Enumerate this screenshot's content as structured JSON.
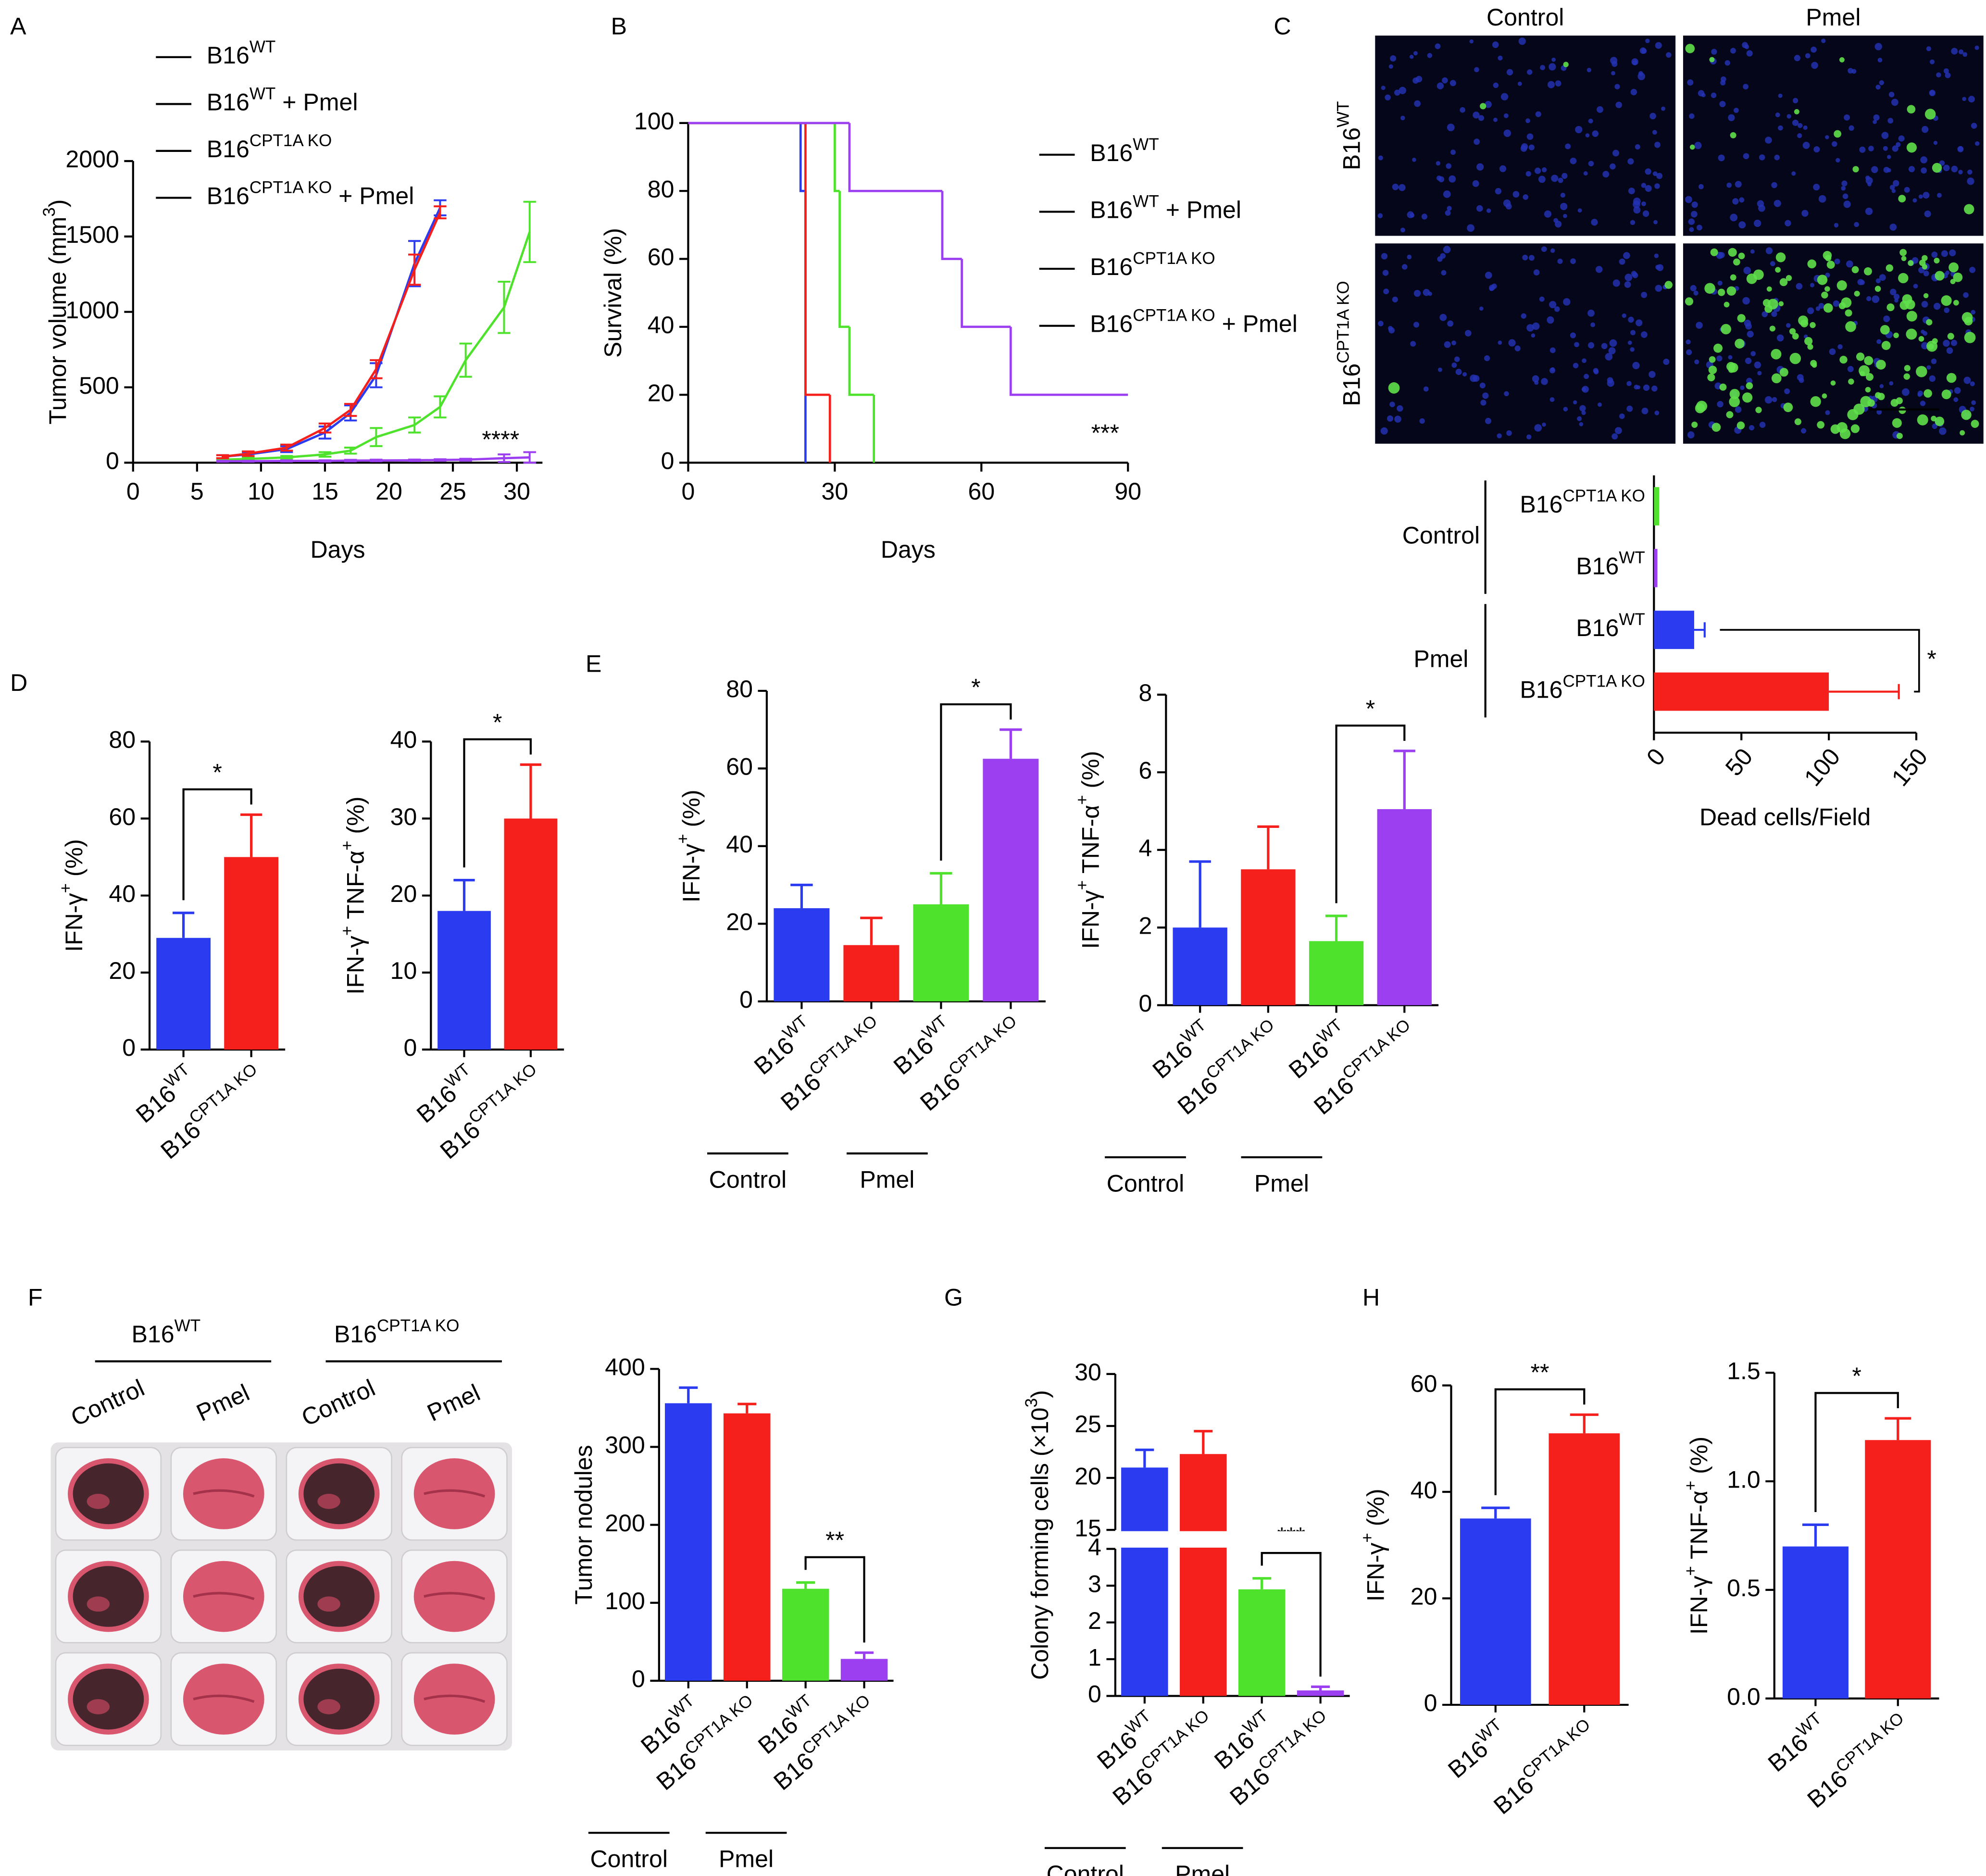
{
  "chart_data": [
    {
      "type": "line",
      "panel": "A",
      "xlabel": "Days",
      "ylabel": [
        "Tumor volume (mm",
        "3",
        ")"
      ],
      "xlim": [
        0,
        32
      ],
      "xticks": [
        0,
        5,
        10,
        15,
        20,
        25,
        30
      ],
      "ylim": [
        0,
        2000
      ],
      "yticks": [
        0,
        500,
        1000,
        1500,
        2000
      ],
      "annotation": "****",
      "series": [
        {
          "name": [
            "B16",
            "WT"
          ],
          "color": "#2b3bef",
          "x": [
            7,
            9,
            12,
            15,
            17,
            19,
            22,
            24
          ],
          "values": [
            40,
            55,
            90,
            200,
            330,
            580,
            1320,
            1690
          ],
          "errors": [
            10,
            15,
            20,
            40,
            50,
            80,
            150,
            50
          ]
        },
        {
          "name": [
            "B16",
            "WT",
            " + Pmel"
          ],
          "color": "#4ee22c",
          "x": [
            7,
            9,
            12,
            15,
            17,
            19,
            22,
            24,
            26,
            29,
            31
          ],
          "values": [
            20,
            25,
            35,
            55,
            80,
            170,
            250,
            370,
            680,
            1030,
            1530
          ],
          "errors": [
            5,
            8,
            10,
            15,
            20,
            60,
            50,
            70,
            110,
            170,
            200
          ]
        },
        {
          "name": [
            "B16",
            "CPT1A KO"
          ],
          "color": "#f5201c",
          "x": [
            7,
            9,
            12,
            15,
            17,
            19,
            22,
            24
          ],
          "values": [
            40,
            60,
            100,
            230,
            350,
            620,
            1280,
            1660
          ],
          "errors": [
            10,
            15,
            20,
            30,
            40,
            60,
            100,
            40
          ]
        },
        {
          "name": [
            "B16",
            "CPT1A KO",
            " + Pmel"
          ],
          "color": "#9b3ff0",
          "x": [
            7,
            9,
            12,
            15,
            17,
            19,
            22,
            24,
            26,
            29,
            31
          ],
          "values": [
            10,
            10,
            12,
            12,
            14,
            15,
            16,
            18,
            20,
            30,
            35
          ],
          "errors": [
            3,
            3,
            4,
            4,
            5,
            5,
            5,
            5,
            6,
            25,
            35
          ]
        }
      ]
    },
    {
      "type": "step",
      "panel": "B",
      "xlabel": "Days",
      "ylabel": "Survival (%)",
      "xlim": [
        0,
        90
      ],
      "xticks": [
        0,
        30,
        60,
        90
      ],
      "ylim": [
        0,
        100
      ],
      "yticks": [
        0,
        20,
        40,
        60,
        80,
        100
      ],
      "annotation": "***",
      "series": [
        {
          "name": [
            "B16",
            "WT"
          ],
          "color": "#2b3bef",
          "x": [
            0,
            23,
            24
          ],
          "values": [
            100,
            80,
            0
          ]
        },
        {
          "name": [
            "B16",
            "WT",
            " + Pmel"
          ],
          "color": "#4ee22c",
          "x": [
            0,
            30,
            31,
            33,
            38
          ],
          "values": [
            100,
            80,
            40,
            20,
            0
          ]
        },
        {
          "name": [
            "B16",
            "CPT1A KO"
          ],
          "color": "#f5201c",
          "x": [
            0,
            24,
            29
          ],
          "values": [
            100,
            20,
            0
          ]
        },
        {
          "name": [
            "B16",
            "CPT1A KO",
            " + Pmel"
          ],
          "color": "#9b3ff0",
          "x": [
            0,
            33,
            52,
            56,
            66,
            90
          ],
          "values": [
            100,
            80,
            60,
            40,
            20,
            20
          ]
        }
      ]
    },
    {
      "type": "image",
      "panel": "C",
      "columns": [
        "Control",
        "Pmel"
      ],
      "rows": [
        [
          "B16",
          "WT"
        ],
        [
          "B16",
          "CPT1A KO"
        ]
      ]
    },
    {
      "type": "hbar",
      "xlabel": "Dead cells/Field",
      "xlim": [
        0,
        150
      ],
      "xticks": [
        0,
        50,
        100,
        150
      ],
      "groups": [
        {
          "label": "Control",
          "bars": [
            {
              "category": [
                "B16",
                "CPT1A KO"
              ],
              "value": 3,
              "color": "#4ee22c"
            },
            {
              "category": [
                "B16",
                "WT"
              ],
              "value": 2,
              "color": "#9b3ff0"
            }
          ]
        },
        {
          "label": "Pmel",
          "bars": [
            {
              "category": [
                "B16",
                "WT"
              ],
              "value": 23,
              "error": 6,
              "color": "#2b3bef"
            },
            {
              "category": [
                "B16",
                "CPT1A KO"
              ],
              "value": 100,
              "error": 40,
              "color": "#f5201c",
              "significance": "*"
            }
          ]
        }
      ]
    },
    {
      "type": "bar",
      "panel": "D",
      "ylabel": [
        "IFN-γ",
        "+",
        " (%)"
      ],
      "ylim": [
        0,
        80
      ],
      "yticks": [
        0,
        20,
        40,
        60,
        80
      ],
      "bars": [
        {
          "category": [
            "B16",
            "WT"
          ],
          "value": 29,
          "error": 6.5,
          "color": "#2b3bef"
        },
        {
          "category": [
            "B16",
            "CPT1A KO"
          ],
          "value": 50,
          "error": 11,
          "color": "#f5201c",
          "significance": "*"
        }
      ]
    },
    {
      "type": "bar",
      "ylabel": [
        "IFN-γ",
        "+",
        " TNF-α",
        "+",
        " (%)"
      ],
      "ylim": [
        0,
        40
      ],
      "yticks": [
        0,
        10,
        20,
        30,
        40
      ],
      "bars": [
        {
          "category": [
            "B16",
            "WT"
          ],
          "value": 18,
          "error": 4,
          "color": "#2b3bef"
        },
        {
          "category": [
            "B16",
            "CPT1A KO"
          ],
          "value": 30,
          "error": 7,
          "color": "#f5201c",
          "significance": "*"
        }
      ]
    },
    {
      "type": "bar",
      "panel": "E",
      "ylabel": [
        "IFN-γ",
        "+",
        " (%)"
      ],
      "ylim": [
        0,
        80
      ],
      "yticks": [
        0,
        20,
        40,
        60,
        80
      ],
      "groups": [
        {
          "label": "Control",
          "bars": [
            {
              "category": [
                "B16",
                "WT"
              ],
              "value": 24,
              "error": 6,
              "color": "#2b3bef"
            },
            {
              "category": [
                "B16",
                "CPT1A KO"
              ],
              "value": 14.5,
              "error": 7,
              "color": "#f5201c"
            }
          ]
        },
        {
          "label": "Pmel",
          "bars": [
            {
              "category": [
                "B16",
                "WT"
              ],
              "value": 25,
              "error": 8,
              "color": "#4ee22c"
            },
            {
              "category": [
                "B16",
                "CPT1A KO"
              ],
              "value": 62.5,
              "error": 7.5,
              "color": "#9b3ff0",
              "significance": "*"
            }
          ]
        }
      ]
    },
    {
      "type": "bar",
      "ylabel": [
        "IFN-γ",
        "+",
        " TNF-α",
        "+",
        " (%)"
      ],
      "ylim": [
        0,
        8
      ],
      "yticks": [
        0,
        2,
        4,
        6,
        8
      ],
      "groups": [
        {
          "label": "Control",
          "bars": [
            {
              "category": [
                "B16",
                "WT"
              ],
              "value": 2,
              "error": 1.7,
              "color": "#2b3bef"
            },
            {
              "category": [
                "B16",
                "CPT1A KO"
              ],
              "value": 3.5,
              "error": 1.1,
              "color": "#f5201c"
            }
          ]
        },
        {
          "label": "Pmel",
          "bars": [
            {
              "category": [
                "B16",
                "WT"
              ],
              "value": 1.65,
              "error": 0.65,
              "color": "#4ee22c"
            },
            {
              "category": [
                "B16",
                "CPT1A KO"
              ],
              "value": 5.05,
              "error": 1.5,
              "color": "#9b3ff0",
              "significance": "*"
            }
          ]
        }
      ]
    },
    {
      "type": "photo",
      "panel": "F",
      "groups": [
        {
          "label": [
            "B16",
            "WT"
          ],
          "columns": [
            "Control",
            "Pmel"
          ]
        },
        {
          "label": [
            "B16",
            "CPT1A KO"
          ],
          "columns": [
            "Control",
            "Pmel"
          ]
        }
      ]
    },
    {
      "type": "bar",
      "ylabel": "Tumor nodules",
      "ylim": [
        0,
        400
      ],
      "yticks": [
        0,
        100,
        200,
        300,
        400
      ],
      "groups": [
        {
          "label": "Control",
          "bars": [
            {
              "category": [
                "B16",
                "WT"
              ],
              "value": 356,
              "error": 20,
              "color": "#2b3bef"
            },
            {
              "category": [
                "B16",
                "CPT1A KO"
              ],
              "value": 343,
              "error": 12,
              "color": "#f5201c"
            }
          ]
        },
        {
          "label": "Pmel",
          "bars": [
            {
              "category": [
                "B16",
                "WT"
              ],
              "value": 118,
              "error": 8,
              "color": "#4ee22c"
            },
            {
              "category": [
                "B16",
                "CPT1A KO"
              ],
              "value": 28,
              "error": 8,
              "color": "#9b3ff0",
              "significance": "**"
            }
          ]
        }
      ]
    },
    {
      "type": "bar",
      "panel": "G",
      "ylabel": [
        "Colony forming cells (×10",
        "3",
        ")"
      ],
      "ylim": [
        0,
        30
      ],
      "ybreak": [
        4,
        15
      ],
      "yticks": [
        0,
        1,
        2,
        3,
        4,
        15,
        20,
        25,
        30
      ],
      "groups": [
        {
          "label": "Control",
          "bars": [
            {
              "category": [
                "B16",
                "WT"
              ],
              "value": 21,
              "error": 1.7,
              "color": "#2b3bef"
            },
            {
              "category": [
                "B16",
                "CPT1A KO"
              ],
              "value": 22.3,
              "error": 2.2,
              "color": "#f5201c"
            }
          ]
        },
        {
          "label": "Pmel",
          "bars": [
            {
              "category": [
                "B16",
                "WT"
              ],
              "value": 2.9,
              "error": 0.3,
              "color": "#4ee22c"
            },
            {
              "category": [
                "B16",
                "CPT1A KO"
              ],
              "value": 0.15,
              "error": 0.1,
              "color": "#9b3ff0",
              "significance": "***"
            }
          ]
        }
      ]
    },
    {
      "type": "bar",
      "panel": "H",
      "ylabel": [
        "IFN-γ",
        "+",
        " (%)"
      ],
      "ylim": [
        0,
        60
      ],
      "yticks": [
        0,
        20,
        40,
        60
      ],
      "bars": [
        {
          "category": [
            "B16",
            "WT"
          ],
          "value": 35,
          "error": 2,
          "color": "#2b3bef"
        },
        {
          "category": [
            "B16",
            "CPT1A KO"
          ],
          "value": 51,
          "error": 3.5,
          "color": "#f5201c",
          "significance": "**"
        }
      ]
    },
    {
      "type": "bar",
      "ylabel": [
        "IFN-γ",
        "+",
        " TNF-α",
        "+",
        " (%)"
      ],
      "ylim": [
        0,
        1.5
      ],
      "yticks": [
        {
          "value": 0,
          "label": "0.0"
        },
        0.5,
        {
          "value": 1,
          "label": "1.0"
        },
        1.5
      ],
      "bars": [
        {
          "category": [
            "B16",
            "WT"
          ],
          "value": 0.7,
          "error": 0.1,
          "color": "#2b3bef"
        },
        {
          "category": [
            "B16",
            "CPT1A KO"
          ],
          "value": 1.19,
          "error": 0.1,
          "color": "#f5201c",
          "significance": "*"
        }
      ]
    }
  ]
}
